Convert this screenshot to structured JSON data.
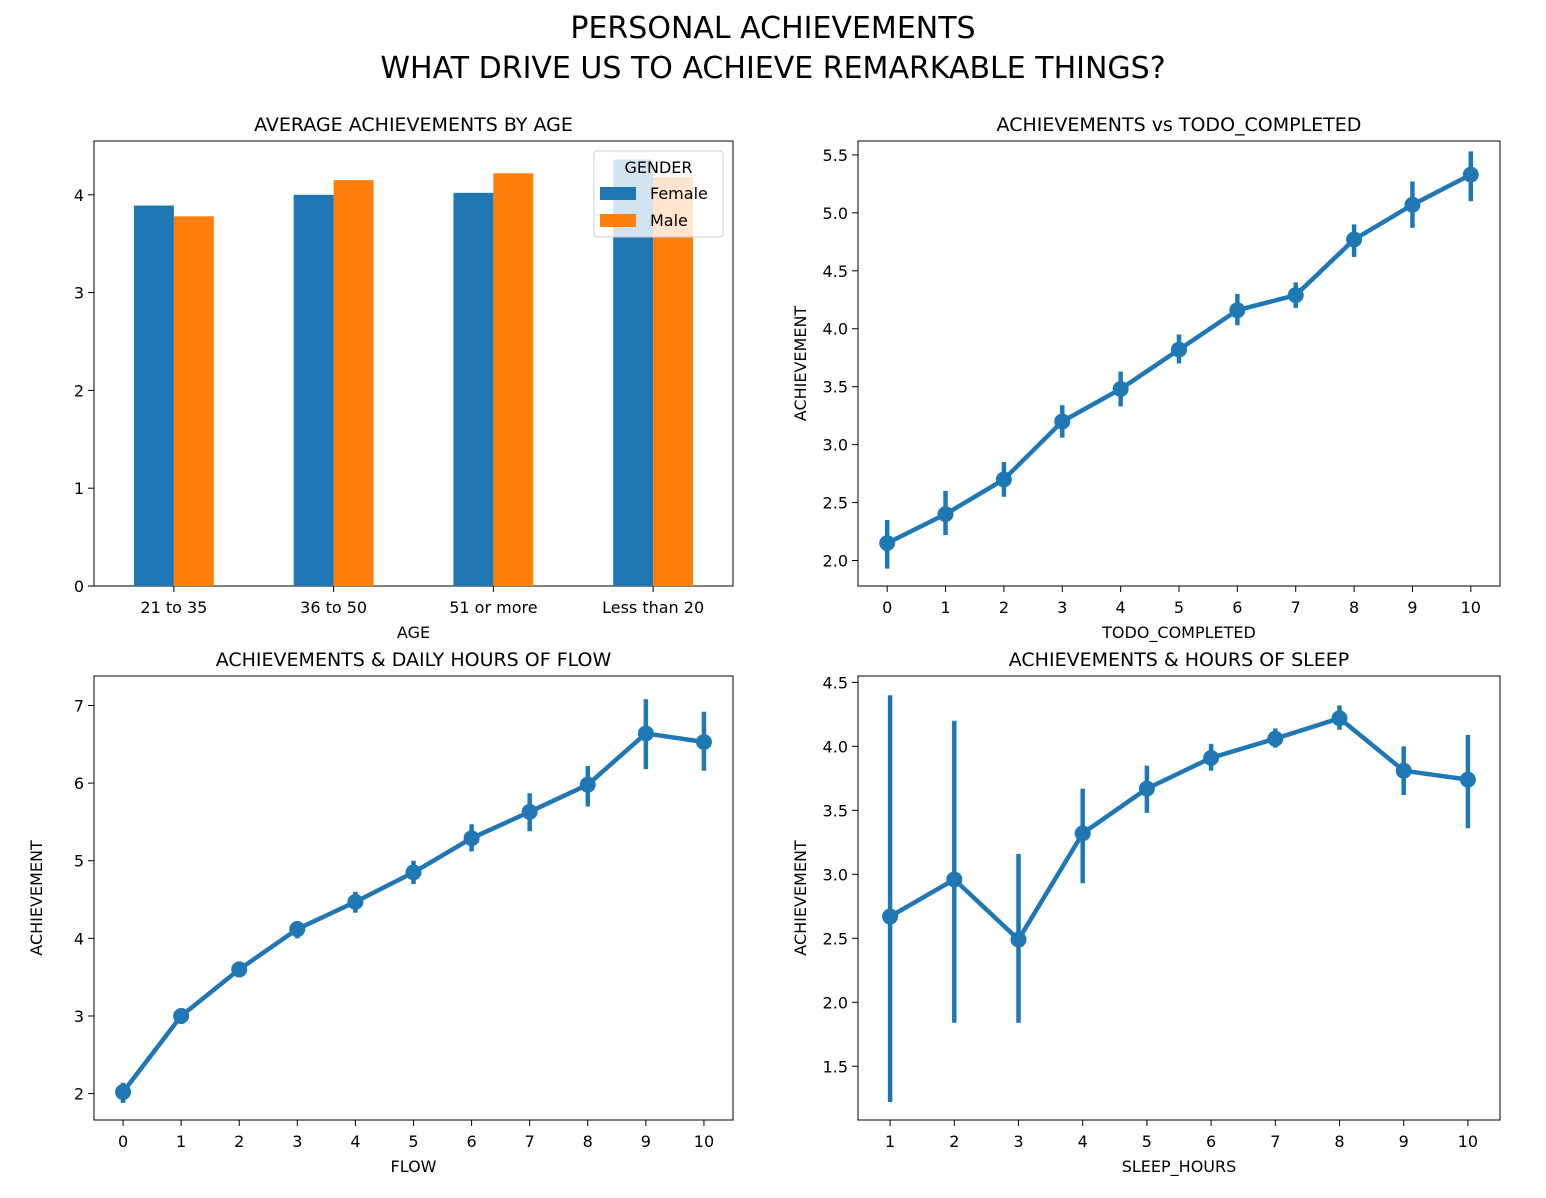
{
  "figure": {
    "title_line1": "PERSONAL ACHIEVEMENTS",
    "title_line2": "WHAT DRIVE US TO ACHIEVE REMARKABLE THINGS?"
  },
  "colors": {
    "female": "#1f77b4",
    "male": "#ff7f0e",
    "line": "#1f77b4"
  },
  "chart_data": [
    {
      "type": "bar",
      "title": "AVERAGE ACHIEVEMENTS BY AGE",
      "xlabel": "AGE",
      "ylabel": "",
      "categories": [
        "21 to 35",
        "36 to 50",
        "51 or more",
        "Less than 20"
      ],
      "series": [
        {
          "name": "Female",
          "values": [
            3.89,
            4.0,
            4.02,
            4.36
          ]
        },
        {
          "name": "Male",
          "values": [
            3.78,
            4.15,
            4.22,
            4.18
          ]
        }
      ],
      "ylim": [
        0,
        4.55
      ],
      "yticks": [
        0,
        1,
        2,
        3,
        4
      ],
      "legend": {
        "title": "GENDER",
        "placement": "top-right"
      },
      "grid": false
    },
    {
      "type": "line",
      "title": "ACHIEVEMENTS vs TODO_COMPLETED",
      "xlabel": "TODO_COMPLETED",
      "ylabel": "ACHIEVEMENT",
      "x": [
        0,
        1,
        2,
        3,
        4,
        5,
        6,
        7,
        8,
        9,
        10
      ],
      "y": [
        2.15,
        2.4,
        2.7,
        3.2,
        3.48,
        3.82,
        4.16,
        4.29,
        4.77,
        5.07,
        5.33
      ],
      "ci_low": [
        1.93,
        2.22,
        2.55,
        3.06,
        3.33,
        3.7,
        4.03,
        4.18,
        4.62,
        4.87,
        5.1
      ],
      "ci_high": [
        2.35,
        2.6,
        2.85,
        3.34,
        3.63,
        3.95,
        4.3,
        4.4,
        4.9,
        5.27,
        5.53
      ],
      "ylim": [
        1.78,
        5.62
      ],
      "yticks": [
        "2.0",
        "2.5",
        "3.0",
        "3.5",
        "4.0",
        "4.5",
        "5.0",
        "5.5"
      ],
      "grid": false
    },
    {
      "type": "line",
      "title": "ACHIEVEMENTS & DAILY HOURS OF FLOW",
      "xlabel": "FLOW",
      "ylabel": "ACHIEVEMENT",
      "x": [
        0,
        1,
        2,
        3,
        4,
        5,
        6,
        7,
        8,
        9,
        10
      ],
      "y": [
        2.02,
        3.0,
        3.6,
        4.12,
        4.47,
        4.85,
        5.29,
        5.63,
        5.98,
        6.64,
        6.53
      ],
      "ci_low": [
        1.88,
        2.9,
        3.5,
        4.0,
        4.33,
        4.7,
        5.12,
        5.38,
        5.7,
        6.18,
        6.16
      ],
      "ci_high": [
        2.14,
        3.1,
        3.69,
        4.22,
        4.6,
        5.0,
        5.47,
        5.87,
        6.22,
        7.08,
        6.92
      ],
      "ylim": [
        1.66,
        7.38
      ],
      "yticks": [
        "2",
        "3",
        "4",
        "5",
        "6",
        "7"
      ],
      "grid": false
    },
    {
      "type": "line",
      "title": "ACHIEVEMENTS & HOURS OF SLEEP",
      "xlabel": "SLEEP_HOURS",
      "ylabel": "ACHIEVEMENT",
      "x": [
        1,
        2,
        3,
        4,
        5,
        6,
        7,
        8,
        9,
        10
      ],
      "y": [
        2.67,
        2.96,
        2.49,
        3.32,
        3.67,
        3.91,
        4.06,
        4.22,
        3.81,
        3.74
      ],
      "ci_low": [
        1.22,
        1.84,
        1.84,
        2.93,
        3.48,
        3.81,
        3.99,
        4.13,
        3.62,
        3.36
      ],
      "ci_high": [
        4.4,
        4.2,
        3.16,
        3.67,
        3.85,
        4.02,
        4.14,
        4.32,
        4.0,
        4.09
      ],
      "ylim": [
        1.08,
        4.55
      ],
      "yticks": [
        "1.5",
        "2.0",
        "2.5",
        "3.0",
        "3.5",
        "4.0",
        "4.5"
      ],
      "grid": false
    }
  ]
}
